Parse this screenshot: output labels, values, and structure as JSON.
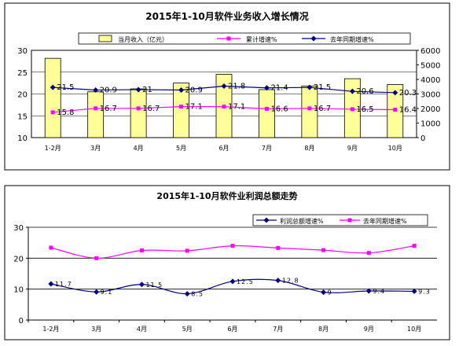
{
  "chart_data": [
    {
      "type": "bar",
      "title": "2015年1-10月软件业务收入增长情况",
      "categories": [
        "1-2月",
        "3月",
        "4月",
        "5月",
        "6月",
        "7月",
        "8月",
        "9月",
        "10月"
      ],
      "left_axis": {
        "ylim": [
          10,
          30
        ],
        "ticks": [
          "10",
          "15",
          "20",
          "25",
          "30"
        ]
      },
      "right_axis": {
        "ylim": [
          0,
          6000
        ],
        "ticks": [
          "0",
          "1000",
          "2000",
          "3000",
          "4000",
          "5000",
          "6000"
        ]
      },
      "grid": true,
      "legend_position": "top",
      "series": [
        {
          "name": "当月收入（亿元）",
          "type": "bar",
          "axis": "right",
          "values": [
            5450,
            3150,
            3350,
            3750,
            4350,
            3300,
            3550,
            4050,
            3650
          ],
          "color": "#ffff99",
          "stroke": "#000000"
        },
        {
          "name": "累计增速%",
          "type": "line",
          "axis": "left",
          "values": [
            15.8,
            16.7,
            16.7,
            17.1,
            17.1,
            16.6,
            16.7,
            16.5,
            16.4
          ],
          "labels": [
            "15.8",
            "16.7",
            "16.7",
            "17.1",
            "17.1",
            "16.6",
            "16.7",
            "16.5",
            "16.4"
          ],
          "color": "#ff00ff",
          "marker": "square"
        },
        {
          "name": "去年同期增速%",
          "type": "line",
          "axis": "left",
          "values": [
            21.5,
            20.9,
            21.0,
            20.9,
            21.8,
            21.4,
            21.5,
            20.6,
            20.3
          ],
          "labels": [
            "21.5",
            "20.9",
            "21",
            "20.9",
            "21.8",
            "21.4",
            "21.5",
            "20.6",
            "20.3"
          ],
          "color": "#000080",
          "marker": "diamond"
        }
      ]
    },
    {
      "type": "line",
      "title": "2015年1-10月软件业利润总额走势",
      "categories": [
        "1-2月",
        "3月",
        "4月",
        "5月",
        "6月",
        "7月",
        "8月",
        "9月",
        "10月"
      ],
      "ylim": [
        0,
        30
      ],
      "yticks": [
        "0",
        "10",
        "20",
        "30"
      ],
      "grid": true,
      "legend_position": "top-right",
      "series": [
        {
          "name": "利润总额增速%",
          "values": [
            11.7,
            9.1,
            11.5,
            8.5,
            12.5,
            12.8,
            9.0,
            9.4,
            9.3
          ],
          "labels": [
            "11.7",
            "9.1",
            "11.5",
            "8.5",
            "12.5",
            "12.8",
            "9",
            "9.4",
            "9.3"
          ],
          "color": "#000080",
          "marker": "diamond",
          "smooth": true
        },
        {
          "name": "去年同期增速%",
          "values": [
            23.4,
            20.0,
            22.5,
            22.4,
            24.0,
            23.3,
            22.6,
            21.7,
            24.0
          ],
          "color": "#ff00ff",
          "marker": "square",
          "smooth": true
        }
      ]
    }
  ]
}
